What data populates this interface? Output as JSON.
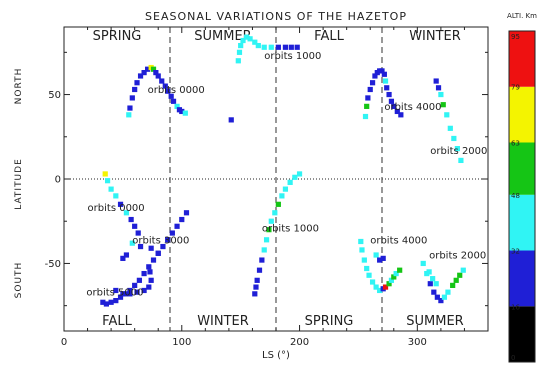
{
  "chart_data": {
    "type": "scatter",
    "title": "SEASONAL VARIATIONS OF THE HAZETOP",
    "xlabel": "LS (°)",
    "ylabel_parts": [
      "NORTH",
      "LATITUDE",
      "SOUTH"
    ],
    "xlim": [
      0,
      360
    ],
    "ylim": [
      -90,
      90
    ],
    "xticks": [
      0,
      100,
      200,
      300
    ],
    "yticks": [
      -50,
      0,
      50
    ],
    "season_dividers_ls": [
      90,
      180,
      270
    ],
    "equator_lat": 0,
    "seasons_north": [
      "SPRING",
      "SUMMER",
      "FALL",
      "WINTER"
    ],
    "seasons_south": [
      "FALL",
      "WINTER",
      "SPRING",
      "SUMMER"
    ],
    "orbit_labels": [
      {
        "text": "orbits 0000",
        "ls": 71,
        "lat": 53
      },
      {
        "text": "orbits 1000",
        "ls": 170,
        "lat": 73
      },
      {
        "text": "orbits 4000",
        "ls": 272,
        "lat": 43
      },
      {
        "text": "orbits 2000",
        "ls": 311,
        "lat": 17
      },
      {
        "text": "orbits 0000",
        "ls": 20,
        "lat": -17
      },
      {
        "text": "orbits 3000",
        "ls": 58,
        "lat": -36
      },
      {
        "text": "orbits 1000",
        "ls": 168,
        "lat": -29
      },
      {
        "text": "orbits 4000",
        "ls": 260,
        "lat": -36
      },
      {
        "text": "orbits 2000",
        "ls": 310,
        "lat": -45
      },
      {
        "text": "orbits 5000",
        "ls": 19,
        "lat": -67
      }
    ],
    "colorbar": {
      "title": "ALTI. Km",
      "ticks": [
        0,
        16,
        32,
        48,
        63,
        79,
        95
      ],
      "range": [
        0,
        95
      ],
      "bands": [
        {
          "from": 0,
          "to": 16,
          "color": "#000000"
        },
        {
          "from": 16,
          "to": 32,
          "color": "#1f1fd6"
        },
        {
          "from": 32,
          "to": 48,
          "color": "#30f4f4"
        },
        {
          "from": 48,
          "to": 63,
          "color": "#15c515"
        },
        {
          "from": 63,
          "to": 79,
          "color": "#f4f400"
        },
        {
          "from": 79,
          "to": 95,
          "color": "#ee1111"
        }
      ]
    },
    "series": [
      {
        "points": [
          [
            55,
            38,
            35
          ],
          [
            56,
            42,
            26
          ],
          [
            58,
            48,
            24
          ],
          [
            60,
            53,
            26
          ],
          [
            62,
            57,
            24
          ],
          [
            65,
            61,
            22
          ],
          [
            68,
            63,
            23
          ],
          [
            71,
            65,
            25
          ],
          [
            74,
            66,
            70
          ],
          [
            76,
            65,
            60
          ],
          [
            78,
            63,
            26
          ],
          [
            80,
            61,
            23
          ],
          [
            83,
            58,
            26
          ],
          [
            86,
            55,
            24
          ],
          [
            88,
            52,
            26
          ],
          [
            91,
            49,
            24
          ],
          [
            93,
            46,
            27
          ],
          [
            96,
            43,
            38
          ],
          [
            98,
            41,
            24
          ],
          [
            100,
            40,
            26
          ],
          [
            103,
            39,
            36
          ]
        ]
      },
      {
        "points": [
          [
            142,
            35,
            24
          ]
        ]
      },
      {
        "points": [
          [
            148,
            70,
            38
          ],
          [
            149,
            75,
            38
          ],
          [
            150,
            79,
            38
          ],
          [
            152,
            82,
            40
          ],
          [
            155,
            84,
            38
          ],
          [
            158,
            83,
            40
          ],
          [
            162,
            81,
            38
          ],
          [
            165,
            79,
            40
          ],
          [
            170,
            78,
            38
          ],
          [
            176,
            78,
            36
          ],
          [
            182,
            78,
            24
          ],
          [
            188,
            78,
            22
          ],
          [
            193,
            78,
            24
          ],
          [
            198,
            78,
            22
          ]
        ]
      },
      {
        "points": [
          [
            256,
            37,
            40
          ],
          [
            257,
            43,
            55
          ],
          [
            258,
            48,
            26
          ],
          [
            260,
            53,
            30
          ],
          [
            262,
            57,
            26
          ],
          [
            264,
            61,
            24
          ],
          [
            266,
            63,
            26
          ],
          [
            268,
            64,
            25
          ],
          [
            270,
            64,
            20
          ],
          [
            272,
            62,
            24
          ],
          [
            273,
            58,
            36
          ],
          [
            274,
            54,
            26
          ],
          [
            276,
            50,
            24
          ],
          [
            278,
            46,
            22
          ],
          [
            280,
            43,
            22
          ],
          [
            283,
            40,
            24
          ],
          [
            286,
            38,
            24
          ]
        ]
      },
      {
        "points": [
          [
            316,
            58,
            24
          ],
          [
            318,
            54,
            22
          ],
          [
            320,
            50,
            40
          ],
          [
            322,
            44,
            52
          ],
          [
            325,
            38,
            36
          ],
          [
            328,
            30,
            37
          ],
          [
            331,
            24,
            40
          ],
          [
            334,
            18,
            38
          ],
          [
            337,
            11,
            36
          ]
        ]
      },
      {
        "points": [
          [
            35,
            3,
            70
          ],
          [
            37,
            -1,
            38
          ],
          [
            40,
            -6,
            36
          ],
          [
            44,
            -10,
            38
          ],
          [
            48,
            -15,
            24
          ],
          [
            53,
            -20,
            37
          ],
          [
            57,
            -24,
            24
          ],
          [
            60,
            -28,
            24
          ],
          [
            63,
            -32,
            26
          ]
        ]
      },
      {
        "points": [
          [
            50,
            -47,
            24
          ],
          [
            53,
            -45,
            22
          ],
          [
            58,
            -38,
            34
          ],
          [
            65,
            -40,
            23
          ],
          [
            74,
            -41,
            24
          ],
          [
            80,
            -44,
            24
          ]
        ]
      },
      {
        "points": [
          [
            33,
            -73,
            24
          ],
          [
            36,
            -74,
            22
          ],
          [
            40,
            -73,
            20
          ],
          [
            44,
            -72,
            24
          ],
          [
            48,
            -70,
            22
          ],
          [
            52,
            -68,
            24
          ],
          [
            56,
            -66,
            22
          ],
          [
            60,
            -63,
            24
          ],
          [
            64,
            -60,
            20
          ],
          [
            68,
            -56,
            24
          ],
          [
            72,
            -52,
            22
          ],
          [
            76,
            -48,
            24
          ],
          [
            80,
            -44,
            24
          ],
          [
            84,
            -40,
            22
          ],
          [
            88,
            -36,
            24
          ],
          [
            92,
            -32,
            26
          ],
          [
            96,
            -28,
            24
          ],
          [
            100,
            -24,
            22
          ],
          [
            104,
            -20,
            24
          ]
        ]
      },
      {
        "points": [
          [
            44,
            -66,
            24
          ],
          [
            50,
            -68,
            22
          ],
          [
            56,
            -68,
            24
          ],
          [
            62,
            -67,
            22
          ],
          [
            68,
            -66,
            24
          ],
          [
            72,
            -64,
            22
          ],
          [
            74,
            -60,
            24
          ],
          [
            73,
            -55,
            22
          ]
        ]
      },
      {
        "points": [
          [
            162,
            -68,
            24
          ],
          [
            163,
            -64,
            22
          ],
          [
            164,
            -60,
            24
          ],
          [
            166,
            -54,
            24
          ],
          [
            168,
            -48,
            22
          ],
          [
            170,
            -42,
            38
          ],
          [
            172,
            -36,
            40
          ],
          [
            174,
            -30,
            52
          ],
          [
            176,
            -25,
            38
          ],
          [
            179,
            -20,
            40
          ],
          [
            182,
            -15,
            52
          ],
          [
            185,
            -10,
            38
          ],
          [
            188,
            -6,
            40
          ],
          [
            192,
            -2,
            42
          ],
          [
            196,
            1,
            40
          ],
          [
            200,
            3,
            36
          ]
        ]
      },
      {
        "points": [
          [
            252,
            -37,
            36
          ],
          [
            253,
            -42,
            38
          ],
          [
            255,
            -48,
            36
          ],
          [
            257,
            -53,
            40
          ],
          [
            259,
            -57,
            38
          ],
          [
            262,
            -61,
            36
          ],
          [
            265,
            -64,
            38
          ],
          [
            268,
            -66,
            36
          ],
          [
            271,
            -65,
            25
          ],
          [
            273,
            -64,
            80
          ],
          [
            276,
            -62,
            55
          ],
          [
            278,
            -60,
            40
          ],
          [
            280,
            -58,
            52
          ],
          [
            282,
            -56,
            38
          ],
          [
            285,
            -54,
            52
          ]
        ]
      },
      {
        "points": [
          [
            265,
            -45,
            36
          ],
          [
            268,
            -48,
            22
          ],
          [
            271,
            -47,
            25
          ]
        ]
      },
      {
        "points": [
          [
            305,
            -50,
            38
          ],
          [
            308,
            -56,
            36
          ],
          [
            311,
            -62,
            30
          ],
          [
            314,
            -67,
            24
          ],
          [
            317,
            -70,
            22
          ],
          [
            320,
            -72,
            24
          ],
          [
            323,
            -70,
            36
          ],
          [
            326,
            -67,
            38
          ],
          [
            330,
            -63,
            50
          ],
          [
            333,
            -60,
            55
          ],
          [
            336,
            -57,
            52
          ],
          [
            339,
            -54,
            40
          ]
        ]
      },
      {
        "points": [
          [
            310,
            -55,
            38
          ],
          [
            313,
            -59,
            36
          ],
          [
            316,
            -62,
            40
          ]
        ]
      }
    ]
  }
}
